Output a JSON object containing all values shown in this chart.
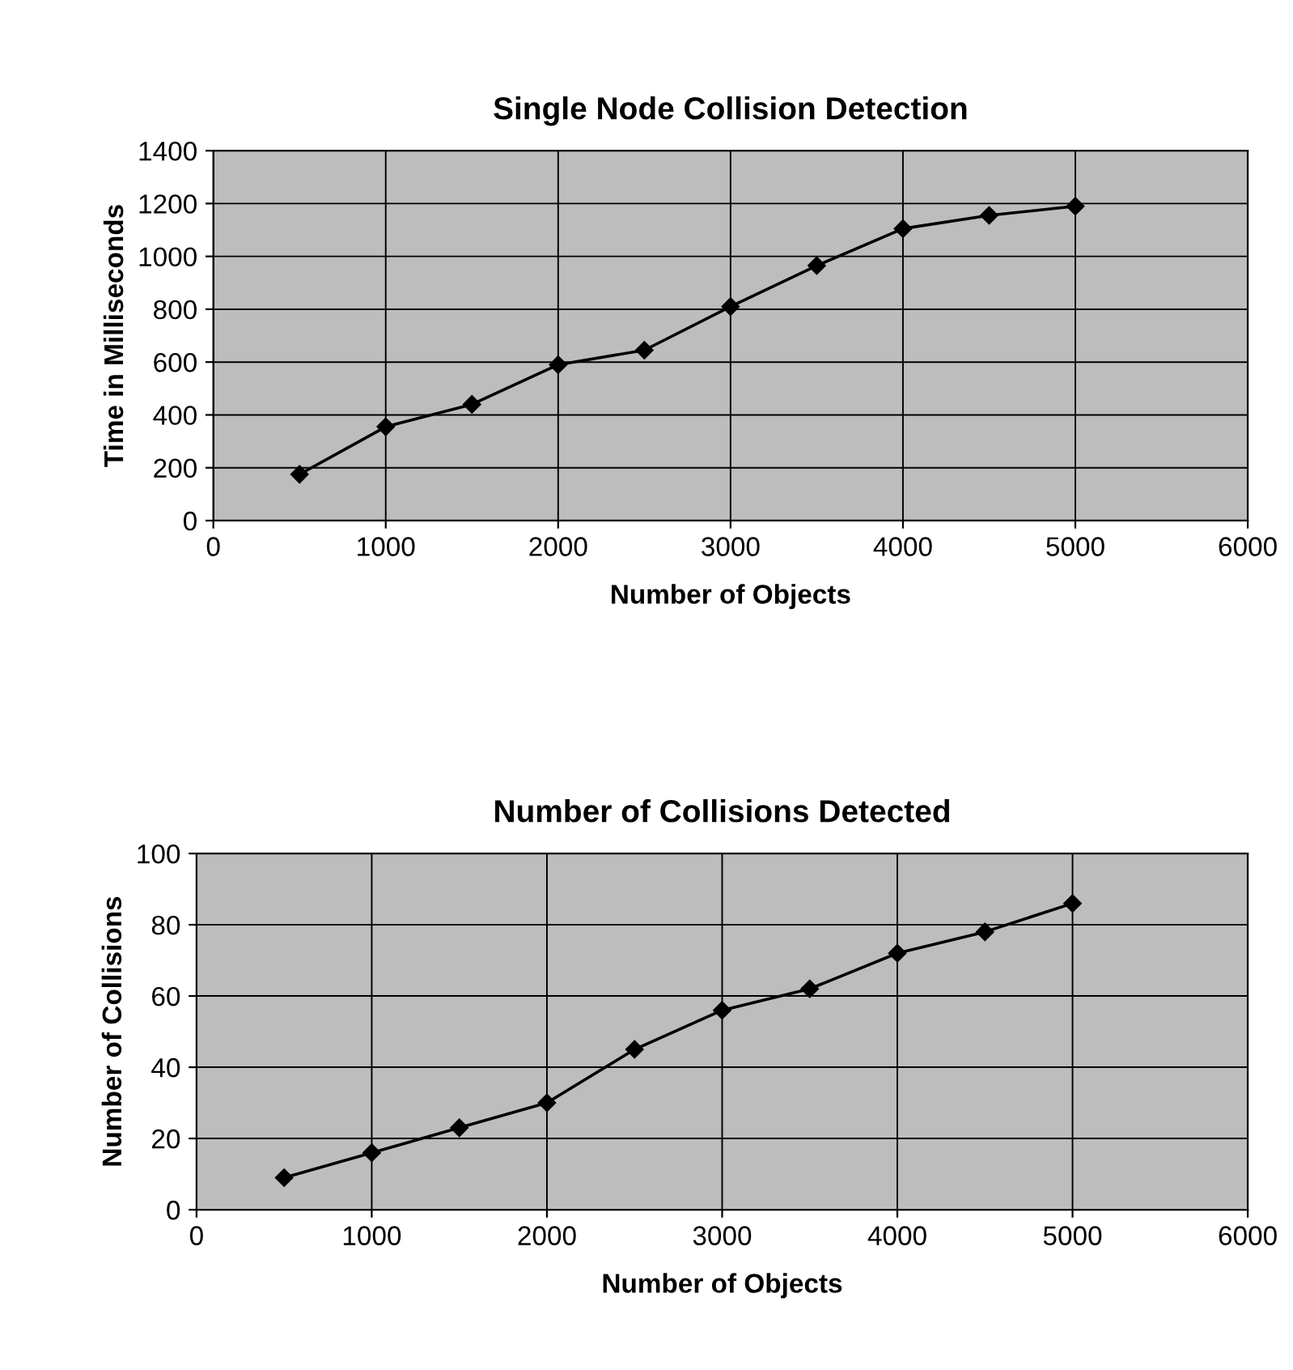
{
  "chart_data": [
    {
      "type": "line",
      "title": "Single Node Collision Detection",
      "xlabel": "Number of Objects",
      "ylabel": "Time in Milliseconds",
      "x": [
        500,
        1000,
        1500,
        2000,
        2500,
        3000,
        3500,
        4000,
        4500,
        5000
      ],
      "series": [
        {
          "color": "#000000",
          "values": [
            175,
            355,
            440,
            590,
            645,
            810,
            965,
            1105,
            1155,
            1190
          ]
        }
      ],
      "xlim": [
        0,
        6000
      ],
      "xticks": [
        0,
        1000,
        2000,
        3000,
        4000,
        5000,
        6000
      ],
      "ylim": [
        0,
        1400
      ],
      "yticks": [
        0,
        200,
        400,
        600,
        800,
        1000,
        1200,
        1400
      ],
      "grid": true,
      "marker": "diamond",
      "line_style": "solid",
      "legend": false
    },
    {
      "type": "line",
      "title": "Number of Collisions Detected",
      "xlabel": "Number of Objects",
      "ylabel": "Number of Collisions",
      "x": [
        500,
        1000,
        1500,
        2000,
        2500,
        3000,
        3500,
        4000,
        4500,
        5000
      ],
      "series": [
        {
          "color": "#000000",
          "values": [
            9,
            16,
            23,
            30,
            45,
            56,
            62,
            72,
            78,
            86
          ]
        }
      ],
      "xlim": [
        0,
        6000
      ],
      "xticks": [
        0,
        1000,
        2000,
        3000,
        4000,
        5000,
        6000
      ],
      "ylim": [
        0,
        100
      ],
      "yticks": [
        0,
        20,
        40,
        60,
        80,
        100
      ],
      "grid": true,
      "marker": "diamond",
      "line_style": "solid",
      "legend": false
    }
  ]
}
